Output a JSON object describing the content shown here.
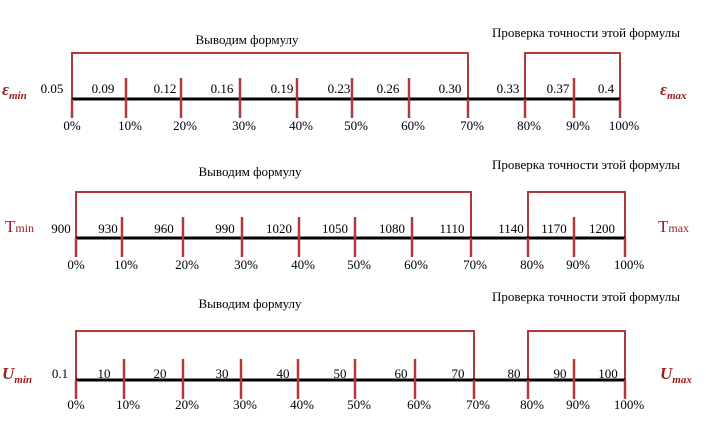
{
  "colors": {
    "axis": "#000000",
    "tick": "#b03a3a",
    "bracket": "#b03a3a",
    "label_red": "#9b1c1c",
    "text": "#000000"
  },
  "percent_labels": [
    "0%",
    "10%",
    "20%",
    "30%",
    "40%",
    "50%",
    "60%",
    "70%",
    "80%",
    "90%",
    "100%"
  ],
  "panels": [
    {
      "id": "emin",
      "title_left": "Выводим формулу",
      "title_right": "Проверка точности этой формулы",
      "label_left_main": "ε",
      "label_left_sub": "min",
      "label_right_main": "ε",
      "label_right_sub": "max",
      "label_style": "serif-italic",
      "values": [
        "0.05",
        "0.09",
        "0.12",
        "0.16",
        "0.19",
        "0.23",
        "0.26",
        "0.30",
        "0.33",
        "0.37",
        "0.4"
      ]
    },
    {
      "id": "tmin",
      "title_left": "Выводим формулу",
      "title_right": "Проверка точности этой формулы",
      "label_left_main": "T",
      "label_left_sub": "min",
      "label_right_main": "T",
      "label_right_sub": "max",
      "label_style": "sans",
      "values": [
        "900",
        "930",
        "960",
        "990",
        "1020",
        "1050",
        "1080",
        "1110",
        "1140",
        "1170",
        "1200"
      ]
    },
    {
      "id": "umin",
      "title_left": "Выводим формулу",
      "title_right": "Проверка точности этой формулы",
      "label_left_main": "U",
      "label_left_sub": "min",
      "label_right_main": "U",
      "label_right_sub": "max",
      "label_style": "serif-italic",
      "values": [
        "0.1",
        "10",
        "20",
        "30",
        "40",
        "50",
        "60",
        "70",
        "80",
        "90",
        "100"
      ]
    }
  ]
}
